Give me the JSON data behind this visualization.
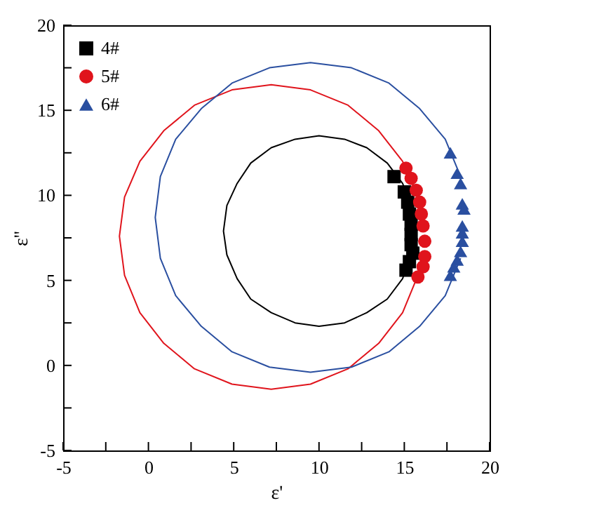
{
  "chart_data": {
    "type": "scatter",
    "xlabel": "ε'",
    "ylabel": "ε''",
    "xlim": [
      -5,
      20
    ],
    "ylim": [
      -5,
      20
    ],
    "xticks": [
      -5,
      {
        "value": -2.5,
        "label": null
      },
      0,
      {
        "value": 2.5,
        "label": null
      },
      5,
      {
        "value": 7.5,
        "label": null
      },
      10,
      {
        "value": 12.5,
        "label": null
      },
      15,
      {
        "value": 17.5,
        "label": null
      },
      20
    ],
    "yticks": [
      -5,
      {
        "value": -2.5,
        "label": null
      },
      0,
      {
        "value": 2.5,
        "label": null
      },
      5,
      {
        "value": 7.5,
        "label": null
      },
      10,
      {
        "value": 12.5,
        "label": null
      },
      15,
      {
        "value": 17.5,
        "label": null
      },
      20
    ],
    "grid": false,
    "legend": "top left",
    "series": [
      {
        "type": "line",
        "color": "#000000",
        "x": [
          15.4,
          14.9,
          14.0,
          12.8,
          11.5,
          10.0,
          8.6,
          7.2,
          6.0,
          5.2,
          4.6,
          4.4,
          4.6,
          5.2,
          6.0,
          7.2,
          8.6,
          10.0,
          11.5,
          12.8,
          14.0,
          14.9,
          15.4
        ],
        "values": [
          9.4,
          10.7,
          11.9,
          12.8,
          13.3,
          13.5,
          13.3,
          12.8,
          11.9,
          10.7,
          9.4,
          7.9,
          6.5,
          5.1,
          3.9,
          3.1,
          2.5,
          2.3,
          2.5,
          3.1,
          3.9,
          5.1,
          6.5
        ]
      },
      {
        "type": "line",
        "color": "#e0141c",
        "x": [
          15.8,
          14.9,
          13.5,
          11.7,
          9.5,
          7.2,
          4.9,
          2.7,
          0.9,
          -0.5,
          -1.4,
          -1.7,
          -1.4,
          -0.5,
          0.9,
          2.7,
          4.9,
          7.2,
          9.5,
          11.7,
          13.5,
          14.9,
          15.8
        ],
        "values": [
          9.9,
          12.0,
          13.8,
          15.3,
          16.2,
          16.5,
          16.2,
          15.3,
          13.8,
          12.0,
          9.9,
          7.6,
          5.3,
          3.1,
          1.3,
          -0.2,
          -1.1,
          -1.4,
          -1.1,
          -0.2,
          1.3,
          3.1,
          5.3
        ]
      },
      {
        "type": "line",
        "color": "#2a4fa0",
        "x": [
          18.3,
          17.4,
          15.9,
          14.1,
          11.9,
          9.5,
          7.1,
          4.9,
          3.1,
          1.6,
          0.7,
          0.4,
          0.7,
          1.6,
          3.1,
          4.9,
          7.1,
          9.5,
          11.9,
          14.1,
          15.9,
          17.4,
          18.3
        ],
        "values": [
          11.1,
          13.3,
          15.1,
          16.6,
          17.5,
          17.8,
          17.5,
          16.6,
          15.1,
          13.3,
          11.1,
          8.7,
          6.3,
          4.1,
          2.3,
          0.8,
          -0.1,
          -0.4,
          -0.1,
          0.8,
          2.3,
          4.1,
          6.3
        ]
      },
      {
        "name": "4#",
        "color": "#000000",
        "marker": "square",
        "x": [
          14.4,
          15.0,
          15.2,
          15.3,
          15.4,
          15.4,
          15.4,
          15.5,
          15.3,
          15.1
        ],
        "values": [
          11.1,
          10.2,
          9.6,
          8.9,
          8.3,
          7.7,
          7.1,
          6.6,
          6.1,
          5.6
        ]
      },
      {
        "name": "5#",
        "color": "#e0141c",
        "marker": "circle",
        "x": [
          15.1,
          15.4,
          15.7,
          15.9,
          16.0,
          16.1,
          16.2,
          16.2,
          16.1,
          15.8
        ],
        "values": [
          11.6,
          11.0,
          10.3,
          9.6,
          8.9,
          8.2,
          7.3,
          6.4,
          5.8,
          5.2
        ]
      },
      {
        "name": "6#",
        "color": "#2a4fa0",
        "marker": "triangle",
        "x": [
          17.7,
          18.1,
          18.3,
          18.4,
          18.5,
          18.4,
          18.4,
          18.4,
          18.3,
          18.1,
          17.9,
          17.7
        ],
        "values": [
          12.5,
          11.3,
          10.7,
          9.5,
          9.2,
          8.2,
          7.8,
          7.3,
          6.7,
          6.2,
          5.8,
          5.3
        ]
      }
    ]
  }
}
